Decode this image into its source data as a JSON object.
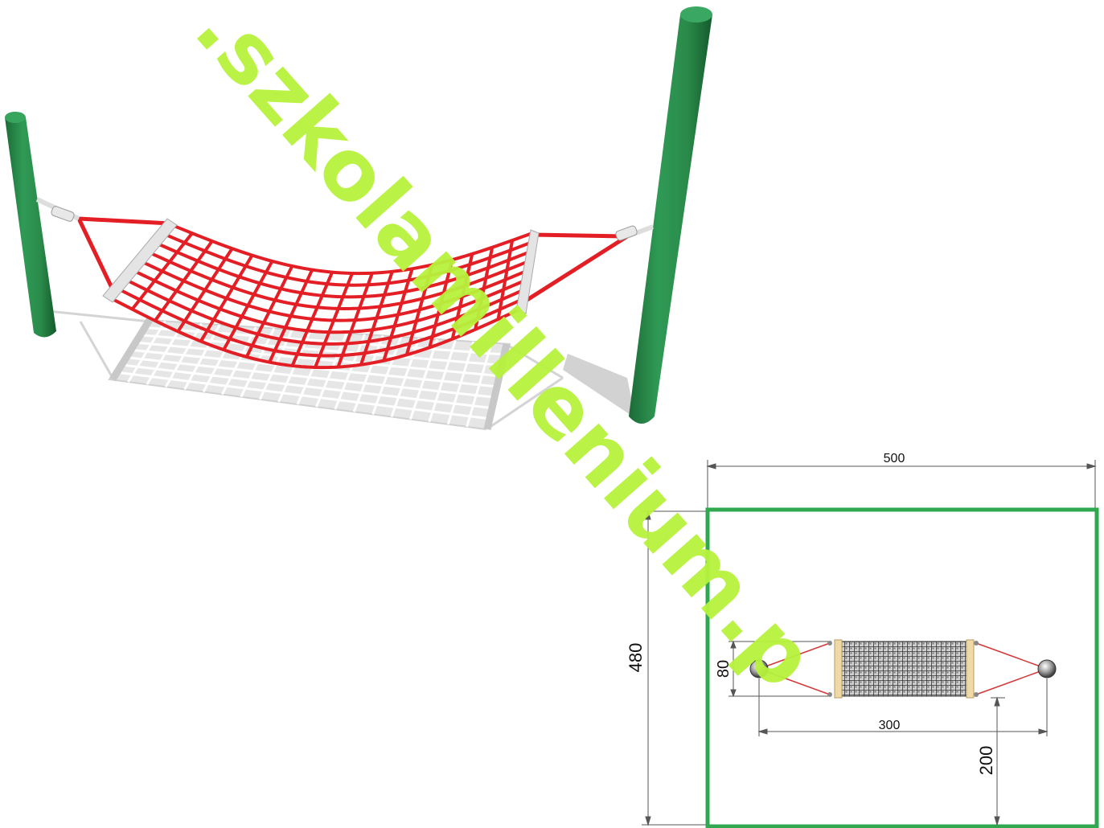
{
  "dimensions": {
    "total_width": "500",
    "total_depth": "480",
    "net_width": "80",
    "post_spacing": "300",
    "offset": "200"
  },
  "watermark": {
    "text": ".szkolamillenium.p"
  },
  "colors": {
    "post": "#2a8a4a",
    "net": "#e31e24",
    "shadow": "#d0d0d0",
    "zone_border": "#2fa84f",
    "watermark": "#b6f23c",
    "bracket": "#e6e6e6",
    "beam": "#efd9a8"
  },
  "icons": {
    "posts": "post-icon",
    "anchors": "anchor-icon"
  }
}
